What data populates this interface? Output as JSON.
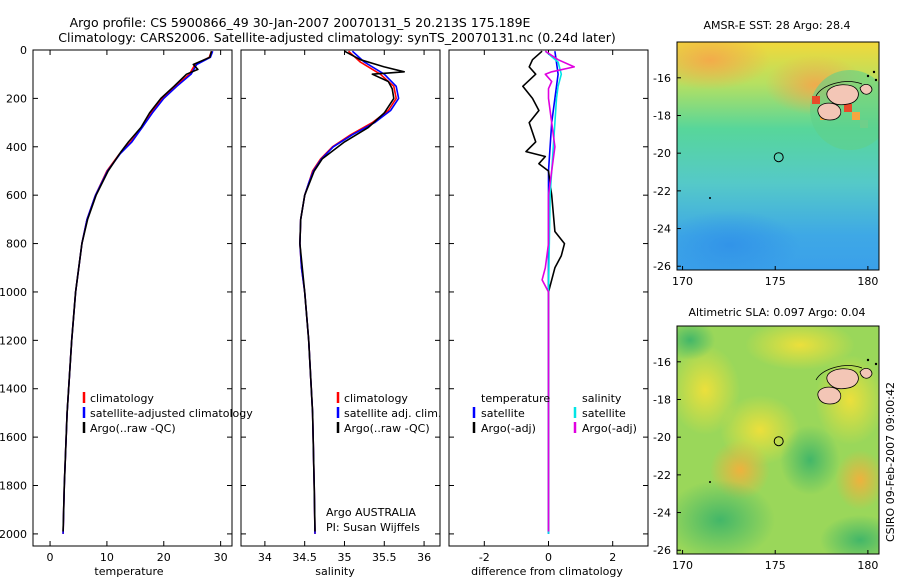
{
  "header": {
    "line1": "Argo profile: CS 5900866_49 30-Jan-2007 20070131_5 20.213S 175.189E",
    "line2": "Climatology: CARS2006. Satellite-adjusted climatology: synTS_20070131.nc (0.24d later)"
  },
  "credit": "CSIRO 09-Feb-2007 09:00:42",
  "colors": {
    "clim": "#ff0000",
    "sat": "#0000ff",
    "argo": "#000000",
    "sat_sal_diff": "#00e5e5",
    "argo_sal_diff": "#e000e0"
  },
  "chart_data": [
    {
      "type": "line",
      "name": "temperature-profile",
      "xlabel": "temperature",
      "ylabel": "",
      "xlim": [
        -3,
        32
      ],
      "ylim": [
        2050,
        0
      ],
      "xticks": [
        0,
        10,
        20,
        30
      ],
      "yticks": [
        0,
        200,
        400,
        600,
        800,
        1000,
        1200,
        1400,
        1600,
        1800,
        2000
      ],
      "legend": {
        "position": "lower-right",
        "entries": [
          "climatology",
          "satellite-adjusted climatology",
          "Argo(..raw -QC)"
        ]
      },
      "series": [
        {
          "name": "climatology",
          "color": "#ff0000",
          "depth": [
            5,
            30,
            60,
            100,
            150,
            200,
            260,
            320,
            380,
            430,
            500,
            600,
            700,
            800,
            1000,
            1200,
            1500,
            1800,
            2000
          ],
          "values": [
            28.4,
            28.0,
            25.5,
            24.5,
            22.0,
            19.8,
            17.8,
            16.2,
            14.2,
            12.2,
            10.0,
            8.0,
            6.5,
            5.6,
            4.5,
            3.8,
            3.0,
            2.5,
            2.3
          ]
        },
        {
          "name": "satellite-adjusted",
          "color": "#0000ff",
          "depth": [
            5,
            30,
            60,
            100,
            150,
            200,
            260,
            320,
            380,
            430,
            500,
            600,
            700,
            800,
            1000,
            1200,
            1500,
            1800,
            2000
          ],
          "values": [
            28.6,
            28.2,
            25.8,
            24.8,
            22.3,
            20.0,
            18.0,
            16.2,
            14.4,
            12.3,
            10.1,
            8.0,
            6.5,
            5.6,
            4.5,
            3.8,
            3.0,
            2.5,
            2.3
          ]
        },
        {
          "name": "Argo",
          "color": "#000000",
          "depth": [
            5,
            30,
            60,
            80,
            100,
            150,
            200,
            260,
            320,
            380,
            420,
            500,
            600,
            700,
            800,
            1000,
            1200,
            1500,
            1800,
            1990
          ],
          "values": [
            28.4,
            28.1,
            25.2,
            26.0,
            24.0,
            21.8,
            19.5,
            17.5,
            16.0,
            13.8,
            12.5,
            10.2,
            8.1,
            6.6,
            5.6,
            4.5,
            3.8,
            3.0,
            2.5,
            2.3
          ]
        }
      ]
    },
    {
      "type": "line",
      "name": "salinity-profile",
      "xlabel": "salinity",
      "xlim": [
        33.7,
        36.2
      ],
      "ylim": [
        2050,
        0
      ],
      "xticks": [
        34,
        34.5,
        35,
        35.5,
        36
      ],
      "legend": {
        "position": "lower-right",
        "entries": [
          "climatology",
          "satellite adj. clim.",
          "Argo(..raw -QC)"
        ]
      },
      "annotation": [
        "Argo AUSTRALIA",
        "PI: Susan Wijffels"
      ],
      "series": [
        {
          "name": "climatology",
          "color": "#ff0000",
          "depth": [
            5,
            50,
            100,
            150,
            200,
            250,
            300,
            350,
            400,
            450,
            500,
            550,
            600,
            700,
            800,
            900,
            1000,
            1200,
            1500,
            1800,
            2000
          ],
          "values": [
            35.05,
            35.2,
            35.45,
            35.62,
            35.65,
            35.55,
            35.35,
            35.08,
            34.85,
            34.7,
            34.6,
            34.55,
            34.5,
            34.45,
            34.44,
            34.46,
            34.5,
            34.55,
            34.6,
            34.62,
            34.63
          ]
        },
        {
          "name": "satellite-adjusted",
          "color": "#0000ff",
          "depth": [
            5,
            50,
            100,
            150,
            200,
            250,
            300,
            350,
            400,
            450,
            500,
            550,
            600,
            700,
            800,
            900,
            1000,
            1200,
            1500,
            1800,
            2000
          ],
          "values": [
            35.1,
            35.25,
            35.5,
            35.65,
            35.68,
            35.58,
            35.38,
            35.1,
            34.86,
            34.71,
            34.61,
            34.55,
            34.5,
            34.45,
            34.44,
            34.46,
            34.5,
            34.55,
            34.6,
            34.62,
            34.63
          ]
        },
        {
          "name": "Argo",
          "color": "#000000",
          "depth": [
            5,
            40,
            70,
            90,
            100,
            130,
            160,
            200,
            260,
            320,
            380,
            450,
            500,
            600,
            700,
            800,
            1000,
            1200,
            1500,
            1800,
            1990
          ],
          "values": [
            35.0,
            35.2,
            35.5,
            35.75,
            35.35,
            35.55,
            35.6,
            35.62,
            35.5,
            35.3,
            35.0,
            34.72,
            34.62,
            34.5,
            34.45,
            34.44,
            34.5,
            34.55,
            34.6,
            34.62,
            34.63
          ]
        }
      ]
    },
    {
      "type": "line",
      "name": "difference-profile",
      "xlabel": "difference from climatology",
      "xlim": [
        -3.1,
        3.1
      ],
      "ylim": [
        2050,
        0
      ],
      "xticks": [
        -2,
        0,
        2
      ],
      "legend": {
        "position": "lower-center",
        "temperature_header": "temperature",
        "salinity_header": "salinity",
        "temperature_entries": [
          "satellite",
          "Argo(-adj)"
        ],
        "salinity_entries": [
          "satellite",
          "Argo(-adj)"
        ]
      },
      "series": [
        {
          "name": "temperature satellite",
          "color": "#0000ff",
          "depth": [
            5,
            100,
            200,
            300,
            400,
            500,
            700,
            1000,
            1500,
            2000
          ],
          "values": [
            0.2,
            0.3,
            0.2,
            0.1,
            0.05,
            0.0,
            0.0,
            0.0,
            0.0,
            0.0
          ]
        },
        {
          "name": "temperature Argo",
          "color": "#000000",
          "depth": [
            5,
            40,
            70,
            100,
            150,
            200,
            250,
            300,
            380,
            420,
            440,
            470,
            500,
            600,
            750,
            800,
            850,
            900,
            950,
            1000,
            1100,
            1300,
            1500,
            1800,
            1990
          ],
          "values": [
            -0.2,
            -0.5,
            -0.6,
            -0.4,
            -0.8,
            -0.5,
            -0.3,
            -0.6,
            -0.4,
            -0.7,
            -0.1,
            -0.3,
            0.0,
            0.1,
            0.2,
            0.5,
            0.4,
            0.2,
            0.1,
            0.0,
            0.0,
            0.0,
            0.0,
            0.0,
            0.0
          ]
        },
        {
          "name": "salinity satellite",
          "color": "#00e5e5",
          "depth": [
            5,
            50,
            100,
            150,
            200,
            300,
            400,
            600,
            1000,
            1500,
            2000
          ],
          "values": [
            -0.1,
            0.3,
            0.4,
            0.3,
            0.25,
            0.2,
            0.15,
            0.05,
            0.0,
            0.0,
            0.0
          ]
        },
        {
          "name": "salinity Argo",
          "color": "#e000e0",
          "depth": [
            5,
            40,
            70,
            90,
            100,
            130,
            160,
            200,
            300,
            400,
            500,
            600,
            700,
            800,
            900,
            950,
            1000,
            1200,
            1500,
            1800,
            1990
          ],
          "values": [
            -0.1,
            0.3,
            0.8,
            0.1,
            -0.1,
            0.1,
            0.0,
            0.0,
            0.1,
            0.2,
            0.1,
            0.0,
            0.0,
            0.0,
            -0.1,
            -0.2,
            0.0,
            0.0,
            0.0,
            0.0,
            0.0
          ]
        }
      ]
    },
    {
      "type": "heatmap",
      "name": "amsr-sst-map",
      "title": "AMSR-E SST: 28 Argo: 28.4",
      "xlim": [
        169.7,
        180.6
      ],
      "ylim": [
        -26.2,
        -14.1
      ],
      "xticks": [
        170,
        175,
        180
      ],
      "yticks": [
        -16,
        -18,
        -20,
        -22,
        -24,
        -26
      ],
      "float_position": {
        "lon": 175.189,
        "lat": -20.213
      }
    },
    {
      "type": "heatmap",
      "name": "altimetric-sla-map",
      "title": "Altimetric SLA: 0.097 Argo: 0.04",
      "xlim": [
        169.7,
        180.6
      ],
      "ylim": [
        -26.2,
        -14.1
      ],
      "xticks": [
        170,
        175,
        180
      ],
      "yticks": [
        -16,
        -18,
        -20,
        -22,
        -24,
        -26
      ],
      "float_position": {
        "lon": 175.189,
        "lat": -20.213
      }
    }
  ]
}
